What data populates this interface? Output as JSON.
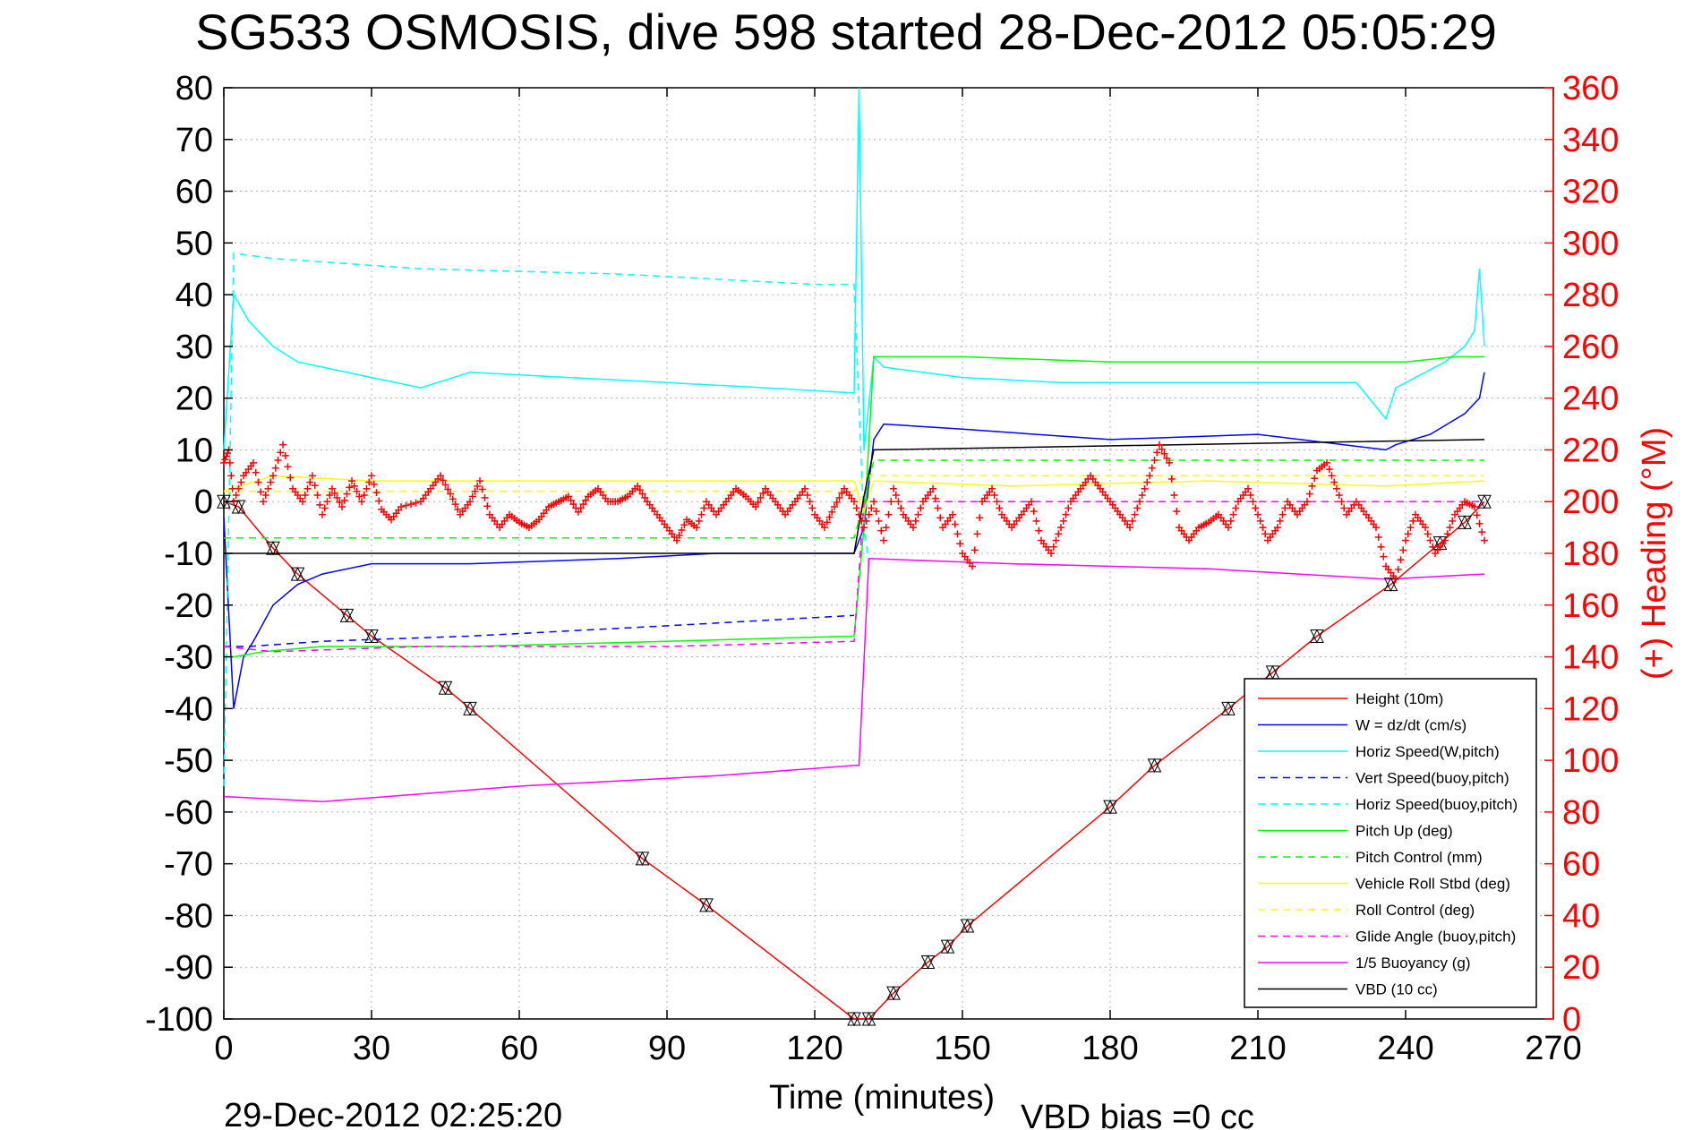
{
  "chart_data": {
    "type": "line",
    "title": "SG533 OSMOSIS, dive 598 started 28-Dec-2012 05:05:29",
    "xlabel": "Time (minutes)",
    "ylabel_right": "(+) Heading (°M)",
    "footer_left": "29-Dec-2012 02:25:20",
    "footer_right": "VBD bias =0 cc",
    "xlim": [
      0,
      270
    ],
    "ylim_left": [
      -100,
      80
    ],
    "ylim_right": [
      0,
      360
    ],
    "xticks": [
      "0",
      "30",
      "60",
      "90",
      "120",
      "150",
      "180",
      "210",
      "240",
      "270"
    ],
    "yticks_left": [
      "80",
      "70",
      "60",
      "50",
      "40",
      "30",
      "20",
      "10",
      "0",
      "-10",
      "-20",
      "-30",
      "-40",
      "-50",
      "-60",
      "-70",
      "-80",
      "-90",
      "-100"
    ],
    "yticks_right": [
      "360",
      "340",
      "320",
      "300",
      "280",
      "260",
      "240",
      "220",
      "200",
      "180",
      "160",
      "140",
      "120",
      "100",
      "80",
      "60",
      "40",
      "20",
      "0"
    ],
    "grid": true,
    "legend_position": "bottom-right",
    "colors": {
      "red": "#ff0000",
      "blue": "#0000ff",
      "cyan": "#00ffff",
      "green": "#00ff00",
      "yellow": "#ffff00",
      "magenta": "#ff00ff",
      "black": "#000000"
    },
    "series": [
      {
        "name": "Height (10m)",
        "color": "#ff0000",
        "dash": false,
        "points": [
          [
            0,
            0
          ],
          [
            3,
            -1
          ],
          [
            10,
            -9
          ],
          [
            15,
            -14
          ],
          [
            25,
            -22
          ],
          [
            30,
            -26
          ],
          [
            45,
            -36
          ],
          [
            50,
            -40
          ],
          [
            85,
            -69
          ],
          [
            98,
            -78
          ],
          [
            128,
            -100
          ],
          [
            131,
            -100
          ],
          [
            136,
            -95
          ],
          [
            143,
            -89
          ],
          [
            147,
            -86
          ],
          [
            151,
            -82
          ],
          [
            180,
            -59
          ],
          [
            189,
            -51
          ],
          [
            204,
            -40
          ],
          [
            213,
            -33
          ],
          [
            222,
            -26
          ],
          [
            237,
            -16
          ],
          [
            247,
            -8
          ],
          [
            252,
            -4
          ],
          [
            256,
            0
          ]
        ]
      },
      {
        "name": "W = dz/dt (cm/s)",
        "color": "#0000ff",
        "dash": false,
        "points": [
          [
            0,
            -3
          ],
          [
            2,
            -40
          ],
          [
            4,
            -30
          ],
          [
            6,
            -27
          ],
          [
            10,
            -20
          ],
          [
            15,
            -16
          ],
          [
            20,
            -14
          ],
          [
            30,
            -12
          ],
          [
            50,
            -12
          ],
          [
            80,
            -11
          ],
          [
            100,
            -10
          ],
          [
            128,
            -10
          ],
          [
            130,
            -5
          ],
          [
            132,
            12
          ],
          [
            134,
            15
          ],
          [
            150,
            14
          ],
          [
            180,
            12
          ],
          [
            210,
            13
          ],
          [
            236,
            10
          ],
          [
            238,
            11
          ],
          [
            245,
            13
          ],
          [
            252,
            17
          ],
          [
            255,
            20
          ],
          [
            256,
            25
          ]
        ]
      },
      {
        "name": "Horiz Speed(W,pitch)",
        "color": "#00ffff",
        "dash": false,
        "points": [
          [
            0,
            10
          ],
          [
            2,
            40
          ],
          [
            5,
            35
          ],
          [
            10,
            30
          ],
          [
            15,
            27
          ],
          [
            20,
            26
          ],
          [
            30,
            24
          ],
          [
            40,
            22
          ],
          [
            50,
            25
          ],
          [
            70,
            24
          ],
          [
            90,
            23
          ],
          [
            110,
            22
          ],
          [
            128,
            21
          ],
          [
            129,
            80
          ],
          [
            130,
            10
          ],
          [
            132,
            28
          ],
          [
            134,
            26
          ],
          [
            150,
            24
          ],
          [
            170,
            23
          ],
          [
            200,
            23
          ],
          [
            230,
            23
          ],
          [
            236,
            16
          ],
          [
            238,
            22
          ],
          [
            248,
            27
          ],
          [
            252,
            30
          ],
          [
            254,
            33
          ],
          [
            255,
            45
          ],
          [
            256,
            30
          ]
        ]
      },
      {
        "name": "Vert Speed(buoy,pitch)",
        "color": "#0000ff",
        "dash": true,
        "points": [
          [
            0,
            -28
          ],
          [
            5,
            -28
          ],
          [
            20,
            -27
          ],
          [
            50,
            -26
          ],
          [
            90,
            -24
          ],
          [
            128,
            -22
          ]
        ]
      },
      {
        "name": "Horiz Speed(buoy,pitch)",
        "color": "#00ffff",
        "dash": true,
        "points": [
          [
            0,
            -55
          ],
          [
            2,
            48
          ],
          [
            10,
            47
          ],
          [
            40,
            45
          ],
          [
            80,
            44
          ],
          [
            120,
            42
          ],
          [
            128,
            42
          ],
          [
            130,
            -5
          ],
          [
            131,
            -12
          ]
        ]
      },
      {
        "name": "Pitch Up (deg)",
        "color": "#00ff00",
        "dash": false,
        "points": [
          [
            0,
            -30
          ],
          [
            2,
            -30
          ],
          [
            8,
            -29
          ],
          [
            20,
            -28
          ],
          [
            50,
            -28
          ],
          [
            90,
            -27
          ],
          [
            128,
            -26
          ],
          [
            130,
            -5
          ],
          [
            132,
            28
          ],
          [
            150,
            28
          ],
          [
            180,
            27
          ],
          [
            236,
            27
          ],
          [
            240,
            27
          ],
          [
            250,
            28
          ],
          [
            255,
            28
          ],
          [
            256,
            28
          ]
        ]
      },
      {
        "name": "Pitch Control (mm)",
        "color": "#00ff00",
        "dash": true,
        "points": [
          [
            0,
            -7
          ],
          [
            128,
            -7
          ],
          [
            130,
            0
          ],
          [
            132,
            8
          ],
          [
            256,
            8
          ]
        ]
      },
      {
        "name": "Vehicle Roll Stbd (deg)",
        "color": "#ffff00",
        "dash": false,
        "points": [
          [
            0,
            2
          ],
          [
            10,
            5
          ],
          [
            30,
            4
          ],
          [
            60,
            4
          ],
          [
            90,
            4
          ],
          [
            128,
            4
          ],
          [
            130,
            -2
          ],
          [
            132,
            4
          ],
          [
            160,
            3
          ],
          [
            200,
            4
          ],
          [
            236,
            3
          ],
          [
            256,
            4
          ]
        ]
      },
      {
        "name": "Roll Control (deg)",
        "color": "#ffff00",
        "dash": true,
        "points": [
          [
            0,
            2
          ],
          [
            128,
            2
          ],
          [
            130,
            5
          ],
          [
            256,
            5
          ]
        ]
      },
      {
        "name": "Glide Angle (buoy,pitch)",
        "color": "#ff00ff",
        "dash": true,
        "points": [
          [
            0,
            -28
          ],
          [
            10,
            -29
          ],
          [
            40,
            -28
          ],
          [
            90,
            -28
          ],
          [
            128,
            -27
          ],
          [
            130,
            0
          ],
          [
            256,
            0
          ]
        ]
      },
      {
        "name": "1/5 Buoyancy (g)",
        "color": "#ff00ff",
        "dash": false,
        "points": [
          [
            0,
            -57
          ],
          [
            20,
            -58
          ],
          [
            60,
            -55
          ],
          [
            100,
            -53
          ],
          [
            128,
            -51
          ],
          [
            129,
            -51
          ],
          [
            131,
            -11
          ],
          [
            160,
            -12
          ],
          [
            200,
            -13
          ],
          [
            236,
            -15
          ],
          [
            256,
            -14
          ]
        ]
      },
      {
        "name": "VBD (10 cc)",
        "color": "#000000",
        "dash": false,
        "points": [
          [
            0,
            -10
          ],
          [
            128,
            -10
          ],
          [
            130,
            1
          ],
          [
            132,
            10
          ],
          [
            256,
            12
          ]
        ]
      }
    ],
    "heading": {
      "name": "(+) Heading (°M)",
      "color": "#ff0000",
      "marker": "+",
      "points": [
        [
          0,
          215
        ],
        [
          1,
          220
        ],
        [
          2,
          200
        ],
        [
          4,
          210
        ],
        [
          6,
          215
        ],
        [
          8,
          200
        ],
        [
          10,
          210
        ],
        [
          12,
          222
        ],
        [
          14,
          205
        ],
        [
          16,
          200
        ],
        [
          18,
          210
        ],
        [
          20,
          195
        ],
        [
          22,
          205
        ],
        [
          24,
          198
        ],
        [
          26,
          208
        ],
        [
          28,
          200
        ],
        [
          30,
          210
        ],
        [
          32,
          197
        ],
        [
          34,
          193
        ],
        [
          36,
          198
        ],
        [
          40,
          200
        ],
        [
          42,
          205
        ],
        [
          44,
          210
        ],
        [
          46,
          203
        ],
        [
          48,
          195
        ],
        [
          50,
          200
        ],
        [
          52,
          208
        ],
        [
          54,
          195
        ],
        [
          56,
          190
        ],
        [
          58,
          195
        ],
        [
          60,
          192
        ],
        [
          62,
          190
        ],
        [
          64,
          193
        ],
        [
          66,
          198
        ],
        [
          68,
          200
        ],
        [
          70,
          202
        ],
        [
          72,
          196
        ],
        [
          74,
          202
        ],
        [
          76,
          205
        ],
        [
          78,
          200
        ],
        [
          80,
          200
        ],
        [
          82,
          202
        ],
        [
          84,
          206
        ],
        [
          86,
          200
        ],
        [
          88,
          195
        ],
        [
          90,
          190
        ],
        [
          92,
          185
        ],
        [
          94,
          193
        ],
        [
          96,
          190
        ],
        [
          98,
          200
        ],
        [
          100,
          195
        ],
        [
          102,
          200
        ],
        [
          104,
          205
        ],
        [
          106,
          202
        ],
        [
          108,
          198
        ],
        [
          110,
          205
        ],
        [
          112,
          200
        ],
        [
          114,
          195
        ],
        [
          116,
          200
        ],
        [
          118,
          205
        ],
        [
          120,
          195
        ],
        [
          122,
          190
        ],
        [
          124,
          198
        ],
        [
          126,
          205
        ],
        [
          128,
          200
        ],
        [
          130,
          190
        ],
        [
          132,
          200
        ],
        [
          134,
          185
        ],
        [
          136,
          205
        ],
        [
          138,
          195
        ],
        [
          140,
          190
        ],
        [
          142,
          200
        ],
        [
          144,
          205
        ],
        [
          146,
          190
        ],
        [
          148,
          195
        ],
        [
          150,
          180
        ],
        [
          152,
          175
        ],
        [
          154,
          200
        ],
        [
          156,
          205
        ],
        [
          158,
          195
        ],
        [
          160,
          190
        ],
        [
          162,
          195
        ],
        [
          164,
          200
        ],
        [
          166,
          185
        ],
        [
          168,
          180
        ],
        [
          170,
          190
        ],
        [
          172,
          200
        ],
        [
          174,
          205
        ],
        [
          176,
          210
        ],
        [
          178,
          205
        ],
        [
          180,
          200
        ],
        [
          182,
          195
        ],
        [
          184,
          190
        ],
        [
          186,
          200
        ],
        [
          188,
          210
        ],
        [
          190,
          222
        ],
        [
          192,
          215
        ],
        [
          194,
          190
        ],
        [
          196,
          185
        ],
        [
          198,
          190
        ],
        [
          200,
          192
        ],
        [
          202,
          195
        ],
        [
          204,
          190
        ],
        [
          206,
          200
        ],
        [
          208,
          205
        ],
        [
          210,
          195
        ],
        [
          212,
          185
        ],
        [
          214,
          190
        ],
        [
          216,
          200
        ],
        [
          218,
          195
        ],
        [
          220,
          200
        ],
        [
          222,
          212
        ],
        [
          224,
          215
        ],
        [
          226,
          205
        ],
        [
          228,
          195
        ],
        [
          230,
          200
        ],
        [
          232,
          195
        ],
        [
          234,
          190
        ],
        [
          236,
          175
        ],
        [
          238,
          170
        ],
        [
          240,
          185
        ],
        [
          242,
          195
        ],
        [
          244,
          190
        ],
        [
          246,
          180
        ],
        [
          248,
          185
        ],
        [
          250,
          195
        ],
        [
          252,
          200
        ],
        [
          254,
          198
        ],
        [
          256,
          185
        ]
      ]
    }
  },
  "legend": {
    "items": [
      {
        "label": "Height (10m)",
        "color": "#ff0000",
        "dash": false
      },
      {
        "label": "W = dz/dt (cm/s)",
        "color": "#0000ff",
        "dash": false
      },
      {
        "label": "Horiz Speed(W,pitch)",
        "color": "#00ffff",
        "dash": false
      },
      {
        "label": "Vert Speed(buoy,pitch)",
        "color": "#0000ff",
        "dash": true
      },
      {
        "label": "Horiz Speed(buoy,pitch)",
        "color": "#00ffff",
        "dash": true
      },
      {
        "label": "Pitch Up (deg)",
        "color": "#00ff00",
        "dash": false
      },
      {
        "label": "Pitch Control (mm)",
        "color": "#00ff00",
        "dash": true
      },
      {
        "label": "Vehicle Roll Stbd (deg)",
        "color": "#ffff00",
        "dash": false
      },
      {
        "label": "Roll Control (deg)",
        "color": "#ffff00",
        "dash": true
      },
      {
        "label": "Glide Angle (buoy,pitch)",
        "color": "#ff00ff",
        "dash": true
      },
      {
        "label": "1/5 Buoyancy (g)",
        "color": "#ff00ff",
        "dash": false
      },
      {
        "label": "VBD (10 cc)",
        "color": "#000000",
        "dash": false
      }
    ]
  }
}
